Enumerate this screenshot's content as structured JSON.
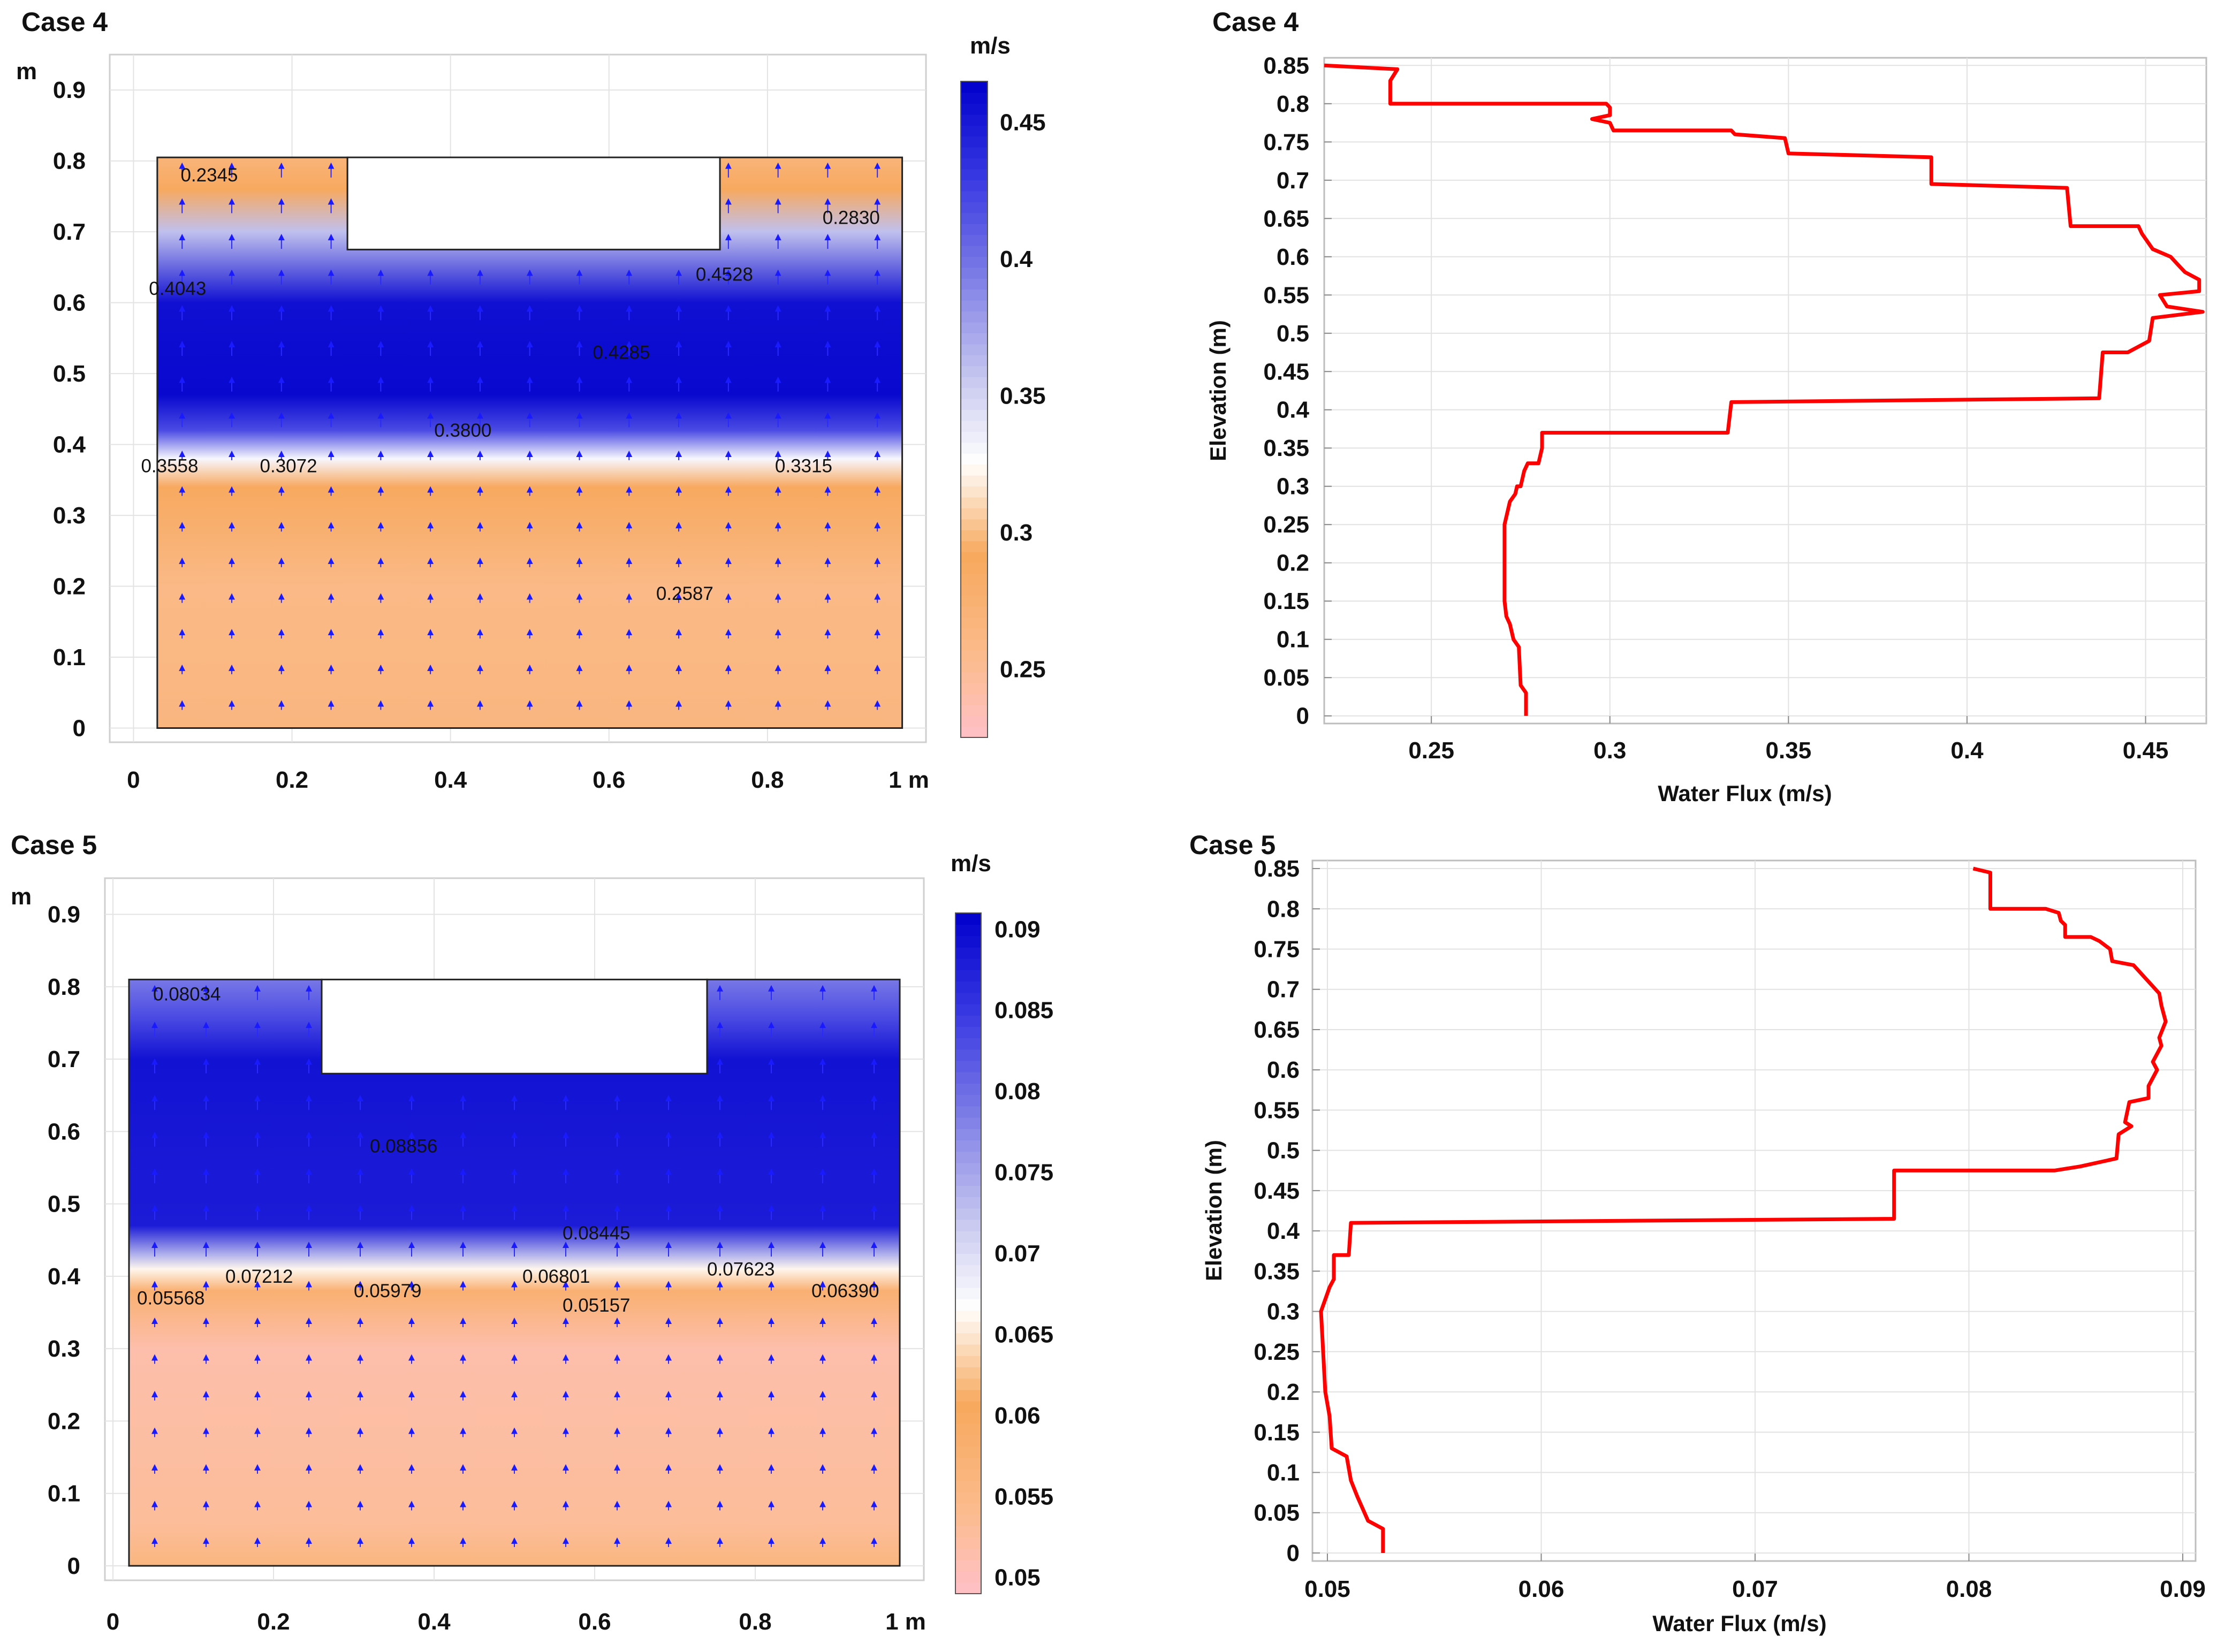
{
  "chart_data": [
    {
      "id": "case4-field",
      "type": "heatmap",
      "title": "Case 4",
      "unit_label": "m/s",
      "x_unit": "1 m",
      "y_unit": "m",
      "x_ticks": [
        "0",
        "0.2",
        "0.4",
        "0.6",
        "0.8"
      ],
      "x_tick_values": [
        0,
        0.2,
        0.4,
        0.6,
        0.8
      ],
      "y_ticks": [
        "0",
        "0.1",
        "0.2",
        "0.3",
        "0.4",
        "0.5",
        "0.6",
        "0.7",
        "0.8",
        "0.9"
      ],
      "y_tick_values": [
        0,
        0.1,
        0.2,
        0.3,
        0.4,
        0.5,
        0.6,
        0.7,
        0.8,
        0.9
      ],
      "xlim": [
        -0.03,
        1.0
      ],
      "ylim": [
        -0.02,
        0.95
      ],
      "domain": {
        "x": [
          0.03,
          0.97
        ],
        "y": [
          0,
          0.805
        ]
      },
      "excavation": {
        "x": [
          0.27,
          0.74
        ],
        "y": [
          0.675,
          0.805
        ]
      },
      "colorbar": {
        "range": [
          0.225,
          0.465
        ],
        "ticks": [
          "0.25",
          "0.3",
          "0.35",
          "0.4",
          "0.45"
        ],
        "tick_values": [
          0.25,
          0.3,
          0.35,
          0.4,
          0.45
        ]
      },
      "bands": [
        {
          "y": 0.0,
          "value": 0.265
        },
        {
          "y": 0.2,
          "value": 0.26
        },
        {
          "y": 0.34,
          "value": 0.29
        },
        {
          "y": 0.38,
          "value": 0.33
        },
        {
          "y": 0.42,
          "value": 0.42
        },
        {
          "y": 0.47,
          "value": 0.46
        },
        {
          "y": 0.6,
          "value": 0.455
        },
        {
          "y": 0.7,
          "value": 0.36
        },
        {
          "y": 0.76,
          "value": 0.29
        },
        {
          "y": 0.805,
          "value": 0.27
        }
      ],
      "contour_labels": [
        {
          "x": 0.1,
          "y": 0.78,
          "text": "0.2345"
        },
        {
          "x": 0.91,
          "y": 0.72,
          "text": "0.2830"
        },
        {
          "x": 0.06,
          "y": 0.62,
          "text": "0.4043"
        },
        {
          "x": 0.75,
          "y": 0.64,
          "text": "0.4528"
        },
        {
          "x": 0.62,
          "y": 0.53,
          "text": "0.4285"
        },
        {
          "x": 0.42,
          "y": 0.42,
          "text": "0.3800"
        },
        {
          "x": 0.05,
          "y": 0.37,
          "text": "0.3558"
        },
        {
          "x": 0.2,
          "y": 0.37,
          "text": "0.3072"
        },
        {
          "x": 0.85,
          "y": 0.37,
          "text": "0.3315"
        },
        {
          "x": 0.7,
          "y": 0.19,
          "text": "0.2587"
        }
      ]
    },
    {
      "id": "case4-profile",
      "type": "line",
      "title": "Case 4",
      "xlabel": "Water Flux (m/s)",
      "ylabel": "Elevation (m)",
      "xlim": [
        0.22,
        0.467
      ],
      "ylim": [
        -0.01,
        0.86
      ],
      "x_ticks": [
        "0.25",
        "0.3",
        "0.35",
        "0.4",
        "0.45"
      ],
      "x_tick_values": [
        0.25,
        0.3,
        0.35,
        0.4,
        0.45
      ],
      "y_ticks": [
        "0",
        "0.05",
        "0.1",
        "0.15",
        "0.2",
        "0.25",
        "0.3",
        "0.35",
        "0.4",
        "0.45",
        "0.5",
        "0.55",
        "0.6",
        "0.65",
        "0.7",
        "0.75",
        "0.8",
        "0.85"
      ],
      "y_tick_values": [
        0,
        0.05,
        0.1,
        0.15,
        0.2,
        0.25,
        0.3,
        0.35,
        0.4,
        0.45,
        0.5,
        0.55,
        0.6,
        0.65,
        0.7,
        0.75,
        0.8,
        0.85
      ],
      "series": [
        {
          "name": "Water Flux",
          "color": "#ff0000",
          "points": [
            [
              0.2765,
              0.0
            ],
            [
              0.2765,
              0.03
            ],
            [
              0.275,
              0.04
            ],
            [
              0.2745,
              0.09
            ],
            [
              0.273,
              0.1
            ],
            [
              0.272,
              0.12
            ],
            [
              0.271,
              0.13
            ],
            [
              0.2705,
              0.15
            ],
            [
              0.2705,
              0.25
            ],
            [
              0.272,
              0.28
            ],
            [
              0.2735,
              0.29
            ],
            [
              0.274,
              0.3
            ],
            [
              0.275,
              0.3
            ],
            [
              0.276,
              0.32
            ],
            [
              0.277,
              0.33
            ],
            [
              0.28,
              0.33
            ],
            [
              0.281,
              0.35
            ],
            [
              0.281,
              0.37
            ],
            [
              0.333,
              0.37
            ],
            [
              0.334,
              0.41
            ],
            [
              0.437,
              0.415
            ],
            [
              0.438,
              0.475
            ],
            [
              0.445,
              0.475
            ],
            [
              0.451,
              0.49
            ],
            [
              0.452,
              0.52
            ],
            [
              0.466,
              0.528
            ],
            [
              0.456,
              0.535
            ],
            [
              0.454,
              0.55
            ],
            [
              0.465,
              0.555
            ],
            [
              0.465,
              0.57
            ],
            [
              0.461,
              0.58
            ],
            [
              0.459,
              0.59
            ],
            [
              0.457,
              0.6
            ],
            [
              0.452,
              0.61
            ],
            [
              0.449,
              0.63
            ],
            [
              0.448,
              0.64
            ],
            [
              0.429,
              0.64
            ],
            [
              0.428,
              0.69
            ],
            [
              0.39,
              0.695
            ],
            [
              0.39,
              0.73
            ],
            [
              0.35,
              0.735
            ],
            [
              0.349,
              0.755
            ],
            [
              0.335,
              0.76
            ],
            [
              0.334,
              0.765
            ],
            [
              0.301,
              0.765
            ],
            [
              0.3,
              0.775
            ],
            [
              0.295,
              0.78
            ],
            [
              0.3,
              0.785
            ],
            [
              0.3,
              0.795
            ],
            [
              0.299,
              0.8
            ],
            [
              0.2385,
              0.8
            ],
            [
              0.2385,
              0.83
            ],
            [
              0.2405,
              0.845
            ],
            [
              0.22,
              0.85
            ]
          ]
        }
      ]
    },
    {
      "id": "case5-field",
      "type": "heatmap",
      "title": "Case 5",
      "unit_label": "m/s",
      "x_unit": "1 m",
      "y_unit": "m",
      "x_ticks": [
        "0",
        "0.2",
        "0.4",
        "0.6",
        "0.8"
      ],
      "x_tick_values": [
        0,
        0.2,
        0.4,
        0.6,
        0.8
      ],
      "y_ticks": [
        "0",
        "0.1",
        "0.2",
        "0.3",
        "0.4",
        "0.5",
        "0.6",
        "0.7",
        "0.8",
        "0.9"
      ],
      "y_tick_values": [
        0,
        0.1,
        0.2,
        0.3,
        0.4,
        0.5,
        0.6,
        0.7,
        0.8,
        0.9
      ],
      "xlim": [
        -0.01,
        1.01
      ],
      "ylim": [
        -0.02,
        0.95
      ],
      "domain": {
        "x": [
          0.02,
          0.98
        ],
        "y": [
          0,
          0.81
        ]
      },
      "excavation": {
        "x": [
          0.26,
          0.74
        ],
        "y": [
          0.68,
          0.81
        ]
      },
      "colorbar": {
        "range": [
          0.049,
          0.091
        ],
        "ticks": [
          "0.05",
          "0.055",
          "0.06",
          "0.065",
          "0.07",
          "0.075",
          "0.08",
          "0.085",
          "0.09"
        ],
        "tick_values": [
          0.05,
          0.055,
          0.06,
          0.065,
          0.07,
          0.075,
          0.08,
          0.085,
          0.09
        ]
      },
      "bands": [
        {
          "y": 0.0,
          "value": 0.056
        },
        {
          "y": 0.06,
          "value": 0.053
        },
        {
          "y": 0.3,
          "value": 0.0515
        },
        {
          "y": 0.38,
          "value": 0.058
        },
        {
          "y": 0.41,
          "value": 0.066
        },
        {
          "y": 0.43,
          "value": 0.074
        },
        {
          "y": 0.47,
          "value": 0.088
        },
        {
          "y": 0.7,
          "value": 0.089
        },
        {
          "y": 0.76,
          "value": 0.083
        },
        {
          "y": 0.81,
          "value": 0.079
        }
      ],
      "contour_labels": [
        {
          "x": 0.09,
          "y": 0.79,
          "text": "0.08034"
        },
        {
          "x": 0.36,
          "y": 0.58,
          "text": "0.08856"
        },
        {
          "x": 0.6,
          "y": 0.46,
          "text": "0.08445"
        },
        {
          "x": 0.18,
          "y": 0.4,
          "text": "0.07212"
        },
        {
          "x": 0.55,
          "y": 0.4,
          "text": "0.06801"
        },
        {
          "x": 0.78,
          "y": 0.41,
          "text": "0.07623"
        },
        {
          "x": 0.07,
          "y": 0.37,
          "text": "0.05568"
        },
        {
          "x": 0.34,
          "y": 0.38,
          "text": "0.05979"
        },
        {
          "x": 0.6,
          "y": 0.36,
          "text": "0.05157"
        },
        {
          "x": 0.91,
          "y": 0.38,
          "text": "0.06390"
        }
      ]
    },
    {
      "id": "case5-profile",
      "type": "line",
      "title": "Case 5",
      "xlabel": "Water Flux (m/s)",
      "ylabel": "Elevation (m)",
      "xlim": [
        0.0493,
        0.0906
      ],
      "ylim": [
        -0.01,
        0.86
      ],
      "x_ticks": [
        "0.05",
        "0.06",
        "0.07",
        "0.08",
        "0.09"
      ],
      "x_tick_values": [
        0.05,
        0.06,
        0.07,
        0.08,
        0.09
      ],
      "y_ticks": [
        "0",
        "0.05",
        "0.1",
        "0.15",
        "0.2",
        "0.25",
        "0.3",
        "0.35",
        "0.4",
        "0.45",
        "0.5",
        "0.55",
        "0.6",
        "0.65",
        "0.7",
        "0.75",
        "0.8",
        "0.85"
      ],
      "y_tick_values": [
        0,
        0.05,
        0.1,
        0.15,
        0.2,
        0.25,
        0.3,
        0.35,
        0.4,
        0.45,
        0.5,
        0.55,
        0.6,
        0.65,
        0.7,
        0.75,
        0.8,
        0.85
      ],
      "series": [
        {
          "name": "Water Flux",
          "color": "#ff0000",
          "points": [
            [
              0.0526,
              0.0
            ],
            [
              0.0526,
              0.03
            ],
            [
              0.0519,
              0.04
            ],
            [
              0.0514,
              0.07
            ],
            [
              0.0511,
              0.09
            ],
            [
              0.0509,
              0.12
            ],
            [
              0.0502,
              0.13
            ],
            [
              0.0501,
              0.17
            ],
            [
              0.0499,
              0.2
            ],
            [
              0.0498,
              0.25
            ],
            [
              0.0497,
              0.3
            ],
            [
              0.0501,
              0.33
            ],
            [
              0.0503,
              0.34
            ],
            [
              0.0503,
              0.37
            ],
            [
              0.051,
              0.37
            ],
            [
              0.0511,
              0.41
            ],
            [
              0.0765,
              0.415
            ],
            [
              0.0765,
              0.475
            ],
            [
              0.084,
              0.475
            ],
            [
              0.0852,
              0.48
            ],
            [
              0.0869,
              0.49
            ],
            [
              0.087,
              0.52
            ],
            [
              0.0876,
              0.53
            ],
            [
              0.0873,
              0.535
            ],
            [
              0.0875,
              0.56
            ],
            [
              0.0884,
              0.565
            ],
            [
              0.0884,
              0.58
            ],
            [
              0.0888,
              0.6
            ],
            [
              0.0886,
              0.61
            ],
            [
              0.089,
              0.63
            ],
            [
              0.0889,
              0.64
            ],
            [
              0.0892,
              0.66
            ],
            [
              0.089,
              0.68
            ],
            [
              0.0889,
              0.695
            ],
            [
              0.0877,
              0.73
            ],
            [
              0.0867,
              0.735
            ],
            [
              0.0866,
              0.75
            ],
            [
              0.0861,
              0.76
            ],
            [
              0.0857,
              0.765
            ],
            [
              0.0845,
              0.765
            ],
            [
              0.0845,
              0.78
            ],
            [
              0.0843,
              0.785
            ],
            [
              0.0842,
              0.795
            ],
            [
              0.0836,
              0.8
            ],
            [
              0.081,
              0.8
            ],
            [
              0.081,
              0.845
            ],
            [
              0.0802,
              0.85
            ]
          ]
        }
      ]
    }
  ]
}
